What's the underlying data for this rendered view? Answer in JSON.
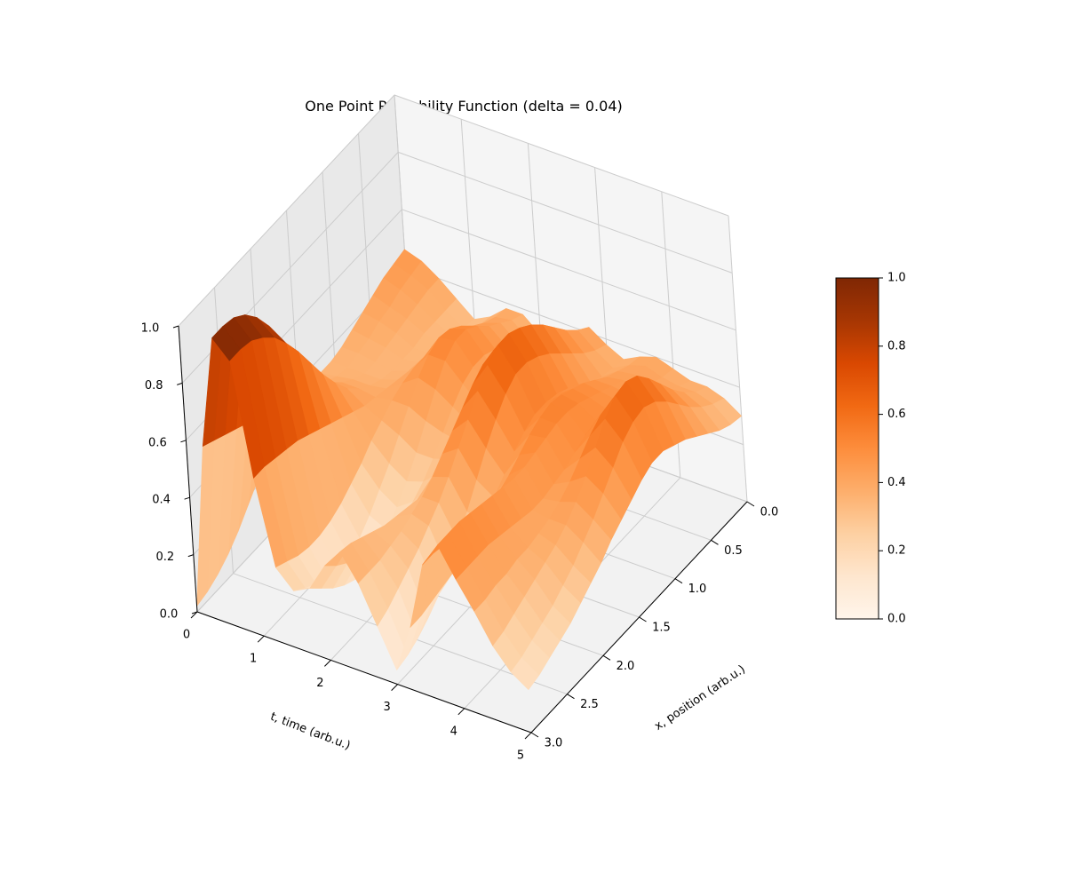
{
  "chart_data": {
    "type": "surface",
    "title": "One Point Probability Function (delta = 0.04)",
    "xlabel": "t, time (arb.u.)",
    "ylabel": "x, position (arb.u.)",
    "zlabel": "",
    "t_lim": [
      0,
      5
    ],
    "x_lim": [
      0,
      3
    ],
    "z_lim": [
      0,
      1
    ],
    "t_ticks": [
      "0",
      "1",
      "2",
      "3",
      "4",
      "5"
    ],
    "x_ticks": [
      "0.0",
      "0.5",
      "1.0",
      "1.5",
      "2.0",
      "2.5",
      "3.0"
    ],
    "z_ticks": [
      "0.0",
      "0.2",
      "0.4",
      "0.6",
      "0.8",
      "1.0"
    ],
    "grid": true,
    "colormap": "Oranges",
    "colorbar": {
      "ticks": [
        "0.0",
        "0.2",
        "0.4",
        "0.6",
        "0.8",
        "1.0"
      ],
      "range": [
        0,
        1
      ],
      "stops": [
        "#fff5eb",
        "#fee6ce",
        "#fdd0a2",
        "#fdae6b",
        "#fd8d3c",
        "#f16913",
        "#d94801",
        "#a63603",
        "#7f2704"
      ]
    },
    "surface": {
      "t": [
        0.0,
        0.25,
        0.5,
        0.75,
        1.0,
        1.25,
        1.5,
        1.75,
        2.0,
        2.25,
        2.5,
        2.75,
        3.0,
        3.25,
        3.5,
        3.75,
        4.0,
        4.25,
        4.5,
        4.75,
        5.0
      ],
      "x": [
        0.0,
        0.15,
        0.3,
        0.45,
        0.6,
        0.75,
        0.9,
        1.05,
        1.2,
        1.35,
        1.5,
        1.65,
        1.8,
        1.95,
        2.1,
        2.25,
        2.4,
        2.55,
        2.7,
        2.85,
        3.0
      ],
      "z": [
        [
          0.46,
          0.45,
          0.44,
          0.42,
          0.4,
          0.38,
          0.36,
          0.35,
          0.35,
          0.36,
          0.37,
          0.36,
          0.33,
          0.28,
          0.22,
          0.17,
          0.12,
          0.08,
          0.05,
          0.03,
          0.02
        ],
        [
          0.44,
          0.43,
          0.42,
          0.4,
          0.39,
          0.37,
          0.36,
          0.35,
          0.36,
          0.38,
          0.4,
          0.42,
          0.44,
          0.46,
          0.48,
          0.5,
          0.52,
          0.54,
          0.56,
          0.58,
          0.6
        ],
        [
          0.4,
          0.4,
          0.39,
          0.38,
          0.37,
          0.36,
          0.35,
          0.35,
          0.37,
          0.4,
          0.44,
          0.5,
          0.57,
          0.66,
          0.75,
          0.84,
          0.91,
          0.96,
          0.99,
          1.0,
          1.0
        ],
        [
          0.35,
          0.35,
          0.35,
          0.35,
          0.34,
          0.34,
          0.34,
          0.35,
          0.37,
          0.4,
          0.44,
          0.5,
          0.57,
          0.65,
          0.73,
          0.8,
          0.86,
          0.9,
          0.93,
          0.94,
          0.94
        ],
        [
          0.3,
          0.31,
          0.32,
          0.33,
          0.34,
          0.35,
          0.36,
          0.37,
          0.38,
          0.39,
          0.4,
          0.42,
          0.44,
          0.46,
          0.48,
          0.5,
          0.52,
          0.53,
          0.54,
          0.55,
          0.55
        ],
        [
          0.33,
          0.34,
          0.35,
          0.37,
          0.39,
          0.41,
          0.43,
          0.43,
          0.42,
          0.4,
          0.37,
          0.34,
          0.3,
          0.27,
          0.24,
          0.22,
          0.21,
          0.21,
          0.22,
          0.24,
          0.26
        ],
        [
          0.38,
          0.39,
          0.41,
          0.44,
          0.48,
          0.51,
          0.52,
          0.5,
          0.46,
          0.4,
          0.34,
          0.28,
          0.23,
          0.18,
          0.14,
          0.12,
          0.11,
          0.12,
          0.14,
          0.17,
          0.2
        ],
        [
          0.38,
          0.4,
          0.43,
          0.46,
          0.5,
          0.53,
          0.53,
          0.5,
          0.44,
          0.37,
          0.3,
          0.24,
          0.19,
          0.15,
          0.12,
          0.1,
          0.1,
          0.12,
          0.15,
          0.19,
          0.23
        ],
        [
          0.33,
          0.35,
          0.38,
          0.41,
          0.44,
          0.46,
          0.46,
          0.44,
          0.4,
          0.35,
          0.3,
          0.26,
          0.23,
          0.21,
          0.2,
          0.2,
          0.21,
          0.23,
          0.26,
          0.29,
          0.33
        ],
        [
          0.3,
          0.31,
          0.32,
          0.34,
          0.36,
          0.38,
          0.39,
          0.38,
          0.36,
          0.34,
          0.32,
          0.31,
          0.3,
          0.3,
          0.31,
          0.32,
          0.33,
          0.35,
          0.37,
          0.39,
          0.4
        ],
        [
          0.38,
          0.4,
          0.43,
          0.47,
          0.51,
          0.55,
          0.58,
          0.6,
          0.59,
          0.56,
          0.52,
          0.48,
          0.44,
          0.4,
          0.37,
          0.35,
          0.33,
          0.32,
          0.31,
          0.31,
          0.31
        ],
        [
          0.42,
          0.45,
          0.49,
          0.54,
          0.59,
          0.63,
          0.66,
          0.68,
          0.68,
          0.65,
          0.6,
          0.54,
          0.48,
          0.42,
          0.37,
          0.33,
          0.29,
          0.26,
          0.23,
          0.2,
          0.18
        ],
        [
          0.38,
          0.4,
          0.43,
          0.47,
          0.51,
          0.55,
          0.58,
          0.6,
          0.6,
          0.57,
          0.52,
          0.46,
          0.39,
          0.32,
          0.26,
          0.2,
          0.15,
          0.11,
          0.08,
          0.06,
          0.05
        ],
        [
          0.35,
          0.36,
          0.37,
          0.39,
          0.42,
          0.45,
          0.47,
          0.48,
          0.48,
          0.46,
          0.43,
          0.39,
          0.35,
          0.31,
          0.28,
          0.26,
          0.25,
          0.24,
          0.23,
          0.22,
          0.22
        ],
        [
          0.38,
          0.39,
          0.41,
          0.43,
          0.46,
          0.49,
          0.51,
          0.53,
          0.54,
          0.53,
          0.51,
          0.48,
          0.45,
          0.43,
          0.42,
          0.42,
          0.43,
          0.44,
          0.45,
          0.46,
          0.46
        ],
        [
          0.4,
          0.41,
          0.42,
          0.44,
          0.46,
          0.48,
          0.5,
          0.52,
          0.53,
          0.53,
          0.52,
          0.51,
          0.5,
          0.5,
          0.51,
          0.52,
          0.53,
          0.54,
          0.55,
          0.55,
          0.55
        ],
        [
          0.38,
          0.39,
          0.41,
          0.43,
          0.45,
          0.47,
          0.48,
          0.48,
          0.47,
          0.45,
          0.43,
          0.42,
          0.41,
          0.41,
          0.42,
          0.43,
          0.44,
          0.45,
          0.45,
          0.45,
          0.45
        ],
        [
          0.36,
          0.38,
          0.41,
          0.45,
          0.49,
          0.53,
          0.56,
          0.57,
          0.56,
          0.53,
          0.49,
          0.45,
          0.42,
          0.4,
          0.39,
          0.38,
          0.38,
          0.37,
          0.37,
          0.36,
          0.36
        ],
        [
          0.36,
          0.38,
          0.42,
          0.47,
          0.53,
          0.59,
          0.64,
          0.66,
          0.65,
          0.61,
          0.55,
          0.49,
          0.44,
          0.4,
          0.37,
          0.35,
          0.33,
          0.31,
          0.29,
          0.27,
          0.26
        ],
        [
          0.34,
          0.36,
          0.39,
          0.43,
          0.48,
          0.53,
          0.57,
          0.59,
          0.58,
          0.55,
          0.5,
          0.45,
          0.4,
          0.36,
          0.32,
          0.29,
          0.26,
          0.24,
          0.22,
          0.2,
          0.19
        ],
        [
          0.3,
          0.31,
          0.33,
          0.36,
          0.39,
          0.42,
          0.44,
          0.46,
          0.46,
          0.44,
          0.41,
          0.38,
          0.35,
          0.31,
          0.28,
          0.25,
          0.22,
          0.2,
          0.18,
          0.16,
          0.15
        ]
      ]
    }
  }
}
